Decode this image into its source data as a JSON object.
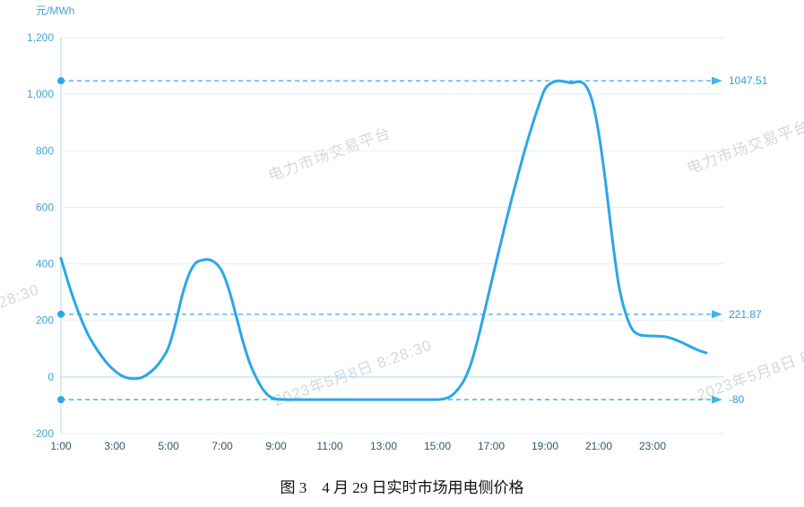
{
  "page": {
    "caption": "图 3　4 月 29 日实时市场用电侧价格"
  },
  "watermarks": {
    "platform": "电力市场交易平台",
    "timestamp": "2023年5月8日 8:28:30"
  },
  "chart_data": {
    "type": "line",
    "title": "",
    "xlabel": "",
    "ylabel": "元/MWh",
    "x_ticks": [
      "1:00",
      "3:00",
      "5:00",
      "7:00",
      "9:00",
      "11:00",
      "13:00",
      "15:00",
      "17:00",
      "19:00",
      "21:00",
      "23:00"
    ],
    "y_ticks": [
      -200,
      0,
      200,
      400,
      600,
      800,
      1000,
      1200
    ],
    "ylim": [
      -200,
      1200
    ],
    "xlim": [
      1,
      25
    ],
    "grid": true,
    "legend_position": "none",
    "series": [
      {
        "name": "实时市场用电侧价格",
        "x": [
          1,
          1.25,
          1.5,
          1.75,
          2,
          2.25,
          2.5,
          2.75,
          3,
          3.25,
          3.5,
          3.75,
          4,
          4.25,
          4.5,
          4.75,
          5,
          5.25,
          5.5,
          5.75,
          6,
          6.25,
          6.5,
          6.75,
          7,
          7.25,
          7.5,
          7.75,
          8,
          8.25,
          8.5,
          8.75,
          9,
          9.5,
          10,
          10.5,
          11,
          11.5,
          12,
          12.5,
          13,
          13.5,
          14,
          14.5,
          15,
          15.25,
          15.5,
          15.75,
          16,
          16.25,
          16.5,
          16.75,
          17,
          17.25,
          17.5,
          17.75,
          18,
          18.25,
          18.5,
          18.75,
          19,
          19.25,
          19.5,
          19.75,
          20,
          20.25,
          20.5,
          20.75,
          21,
          21.25,
          21.5,
          21.75,
          22,
          22.25,
          22.5,
          22.75,
          23,
          23.25,
          23.5,
          23.75,
          24,
          24.25,
          24.5,
          24.75,
          25
        ],
        "y": [
          420,
          340,
          268,
          205,
          152,
          110,
          75,
          45,
          22,
          5,
          -4,
          -6,
          -2,
          12,
          32,
          62,
          105,
          185,
          285,
          360,
          402,
          413,
          415,
          403,
          372,
          308,
          222,
          132,
          55,
          0,
          -42,
          -68,
          -78,
          -80,
          -80,
          -80,
          -80,
          -80,
          -80,
          -80,
          -80,
          -80,
          -80,
          -80,
          -80,
          -77,
          -68,
          -45,
          -10,
          48,
          132,
          230,
          332,
          432,
          530,
          625,
          715,
          802,
          882,
          955,
          1018,
          1040,
          1047,
          1044,
          1040,
          1044,
          1032,
          978,
          862,
          692,
          492,
          322,
          225,
          168,
          150,
          146,
          145,
          144,
          142,
          135,
          126,
          115,
          103,
          93,
          85
        ]
      }
    ],
    "reference_lines": [
      {
        "value": 1047.51,
        "label": "1047.51"
      },
      {
        "value": 221.87,
        "label": "221.87"
      },
      {
        "value": -80,
        "label": "-80"
      }
    ],
    "colors": {
      "line": "#2ba7e8",
      "reference": "#45b4ec",
      "grid": "#e2eef6",
      "axis": "#aed7ee",
      "y_label": "#3fa3d8",
      "x_label": "#2e5871",
      "ref_label": "#2e9fdf"
    }
  }
}
